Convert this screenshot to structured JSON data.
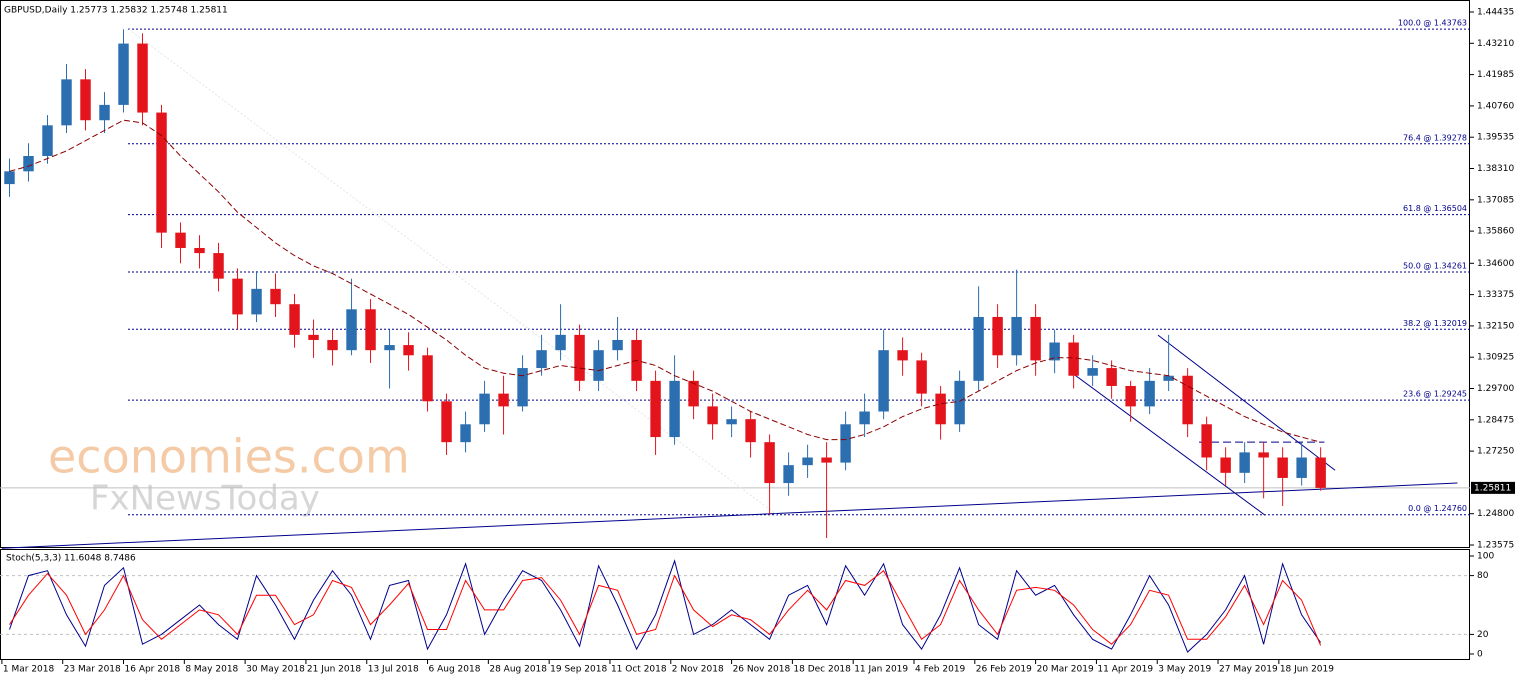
{
  "chart_data": {
    "type": "candlestick",
    "title": "GBPUSD,Daily  1.25773 1.25832 1.25748 1.25811",
    "x": [
      2,
      7,
      12,
      17,
      22,
      27,
      32,
      37,
      42,
      47,
      52,
      57,
      62,
      67,
      72,
      77,
      82,
      87,
      92,
      97,
      102,
      107,
      112,
      117,
      122,
      127,
      132,
      137,
      142,
      147,
      152,
      157,
      162,
      167,
      172,
      177,
      182,
      187,
      192,
      197,
      202,
      207,
      212,
      217,
      222,
      227,
      232,
      237,
      242,
      247,
      252,
      257,
      262,
      267,
      272,
      277,
      282,
      287,
      292,
      297,
      302,
      307,
      312,
      317,
      322,
      327,
      332,
      337,
      342,
      347
    ],
    "open": [
      1.377,
      1.382,
      1.388,
      1.4,
      1.418,
      1.402,
      1.408,
      1.432,
      1.405,
      1.358,
      1.352,
      1.35,
      1.34,
      1.326,
      1.336,
      1.33,
      1.318,
      1.316,
      1.312,
      1.328,
      1.312,
      1.314,
      1.31,
      1.292,
      1.276,
      1.283,
      1.295,
      1.29,
      1.305,
      1.312,
      1.318,
      1.3,
      1.312,
      1.316,
      1.3,
      1.278,
      1.3,
      1.29,
      1.283,
      1.285,
      1.276,
      1.26,
      1.267,
      1.27,
      1.268,
      1.283,
      1.288,
      1.312,
      1.308,
      1.295,
      1.283,
      1.3,
      1.325,
      1.31,
      1.325,
      1.308,
      1.315,
      1.302,
      1.305,
      1.298,
      1.29,
      1.3,
      1.302,
      1.283,
      1.27,
      1.264,
      1.272,
      1.27,
      1.262,
      1.27
    ],
    "high": [
      1.387,
      1.393,
      1.404,
      1.424,
      1.422,
      1.413,
      1.4376,
      1.436,
      1.408,
      1.362,
      1.357,
      1.354,
      1.344,
      1.343,
      1.342,
      1.334,
      1.324,
      1.32,
      1.34,
      1.332,
      1.32,
      1.319,
      1.313,
      1.295,
      1.288,
      1.3,
      1.302,
      1.31,
      1.318,
      1.33,
      1.322,
      1.316,
      1.325,
      1.32,
      1.304,
      1.31,
      1.304,
      1.295,
      1.29,
      1.288,
      1.279,
      1.272,
      1.275,
      1.276,
      1.288,
      1.295,
      1.32,
      1.317,
      1.311,
      1.298,
      1.304,
      1.337,
      1.33,
      1.3435,
      1.33,
      1.32,
      1.318,
      1.31,
      1.308,
      1.3,
      1.305,
      1.318,
      1.305,
      1.286,
      1.274,
      1.276,
      1.276,
      1.274,
      1.276,
      1.274
    ],
    "low": [
      1.372,
      1.378,
      1.385,
      1.397,
      1.398,
      1.397,
      1.405,
      1.4,
      1.352,
      1.346,
      1.344,
      1.335,
      1.32,
      1.323,
      1.325,
      1.313,
      1.309,
      1.306,
      1.31,
      1.307,
      1.297,
      1.304,
      1.288,
      1.271,
      1.272,
      1.28,
      1.279,
      1.288,
      1.302,
      1.308,
      1.296,
      1.296,
      1.308,
      1.296,
      1.271,
      1.275,
      1.285,
      1.277,
      1.278,
      1.27,
      1.2476,
      1.255,
      1.262,
      1.2385,
      1.265,
      1.278,
      1.285,
      1.302,
      1.29,
      1.277,
      1.28,
      1.296,
      1.305,
      1.306,
      1.302,
      1.303,
      1.297,
      1.298,
      1.293,
      1.284,
      1.287,
      1.296,
      1.278,
      1.265,
      1.259,
      1.26,
      1.254,
      1.251,
      1.259,
      1.257
    ],
    "close": [
      1.382,
      1.388,
      1.4,
      1.418,
      1.402,
      1.408,
      1.432,
      1.405,
      1.358,
      1.352,
      1.35,
      1.34,
      1.326,
      1.336,
      1.33,
      1.318,
      1.316,
      1.312,
      1.328,
      1.312,
      1.314,
      1.31,
      1.292,
      1.276,
      1.283,
      1.295,
      1.29,
      1.305,
      1.312,
      1.318,
      1.3,
      1.312,
      1.316,
      1.3,
      1.278,
      1.3,
      1.29,
      1.283,
      1.285,
      1.276,
      1.26,
      1.267,
      1.27,
      1.268,
      1.283,
      1.288,
      1.312,
      1.308,
      1.295,
      1.283,
      1.3,
      1.325,
      1.31,
      1.325,
      1.308,
      1.315,
      1.302,
      1.305,
      1.298,
      1.29,
      1.3,
      1.302,
      1.283,
      1.27,
      1.264,
      1.272,
      1.27,
      1.262,
      1.27,
      1.25811
    ],
    "up_color": "#2b6fb0",
    "down_color": "#e3141c",
    "ma": {
      "color": "#8b0000",
      "values": [
        1.382,
        1.384,
        1.387,
        1.39,
        1.394,
        1.398,
        1.402,
        1.401,
        1.396,
        1.388,
        1.381,
        1.374,
        1.366,
        1.36,
        1.354,
        1.349,
        1.345,
        1.342,
        1.338,
        1.334,
        1.33,
        1.326,
        1.321,
        1.316,
        1.31,
        1.305,
        1.303,
        1.302,
        1.304,
        1.306,
        1.305,
        1.304,
        1.306,
        1.308,
        1.306,
        1.302,
        1.299,
        1.296,
        1.292,
        1.288,
        1.285,
        1.282,
        1.279,
        1.277,
        1.277,
        1.279,
        1.282,
        1.286,
        1.289,
        1.291,
        1.292,
        1.296,
        1.3,
        1.304,
        1.307,
        1.309,
        1.309,
        1.308,
        1.306,
        1.304,
        1.303,
        1.302,
        1.298,
        1.294,
        1.29,
        1.286,
        1.283,
        1.28,
        1.278,
        1.276
      ]
    },
    "xlim": [
      -0.5,
      386.3
    ],
    "xticks": [
      {
        "value": 0,
        "label": "1 Mar 2018"
      },
      {
        "value": 16,
        "label": "23 Mar 2018"
      },
      {
        "value": 32,
        "label": "16 Apr 2018"
      },
      {
        "value": 48,
        "label": "8 May 2018"
      },
      {
        "value": 64,
        "label": "30 May 2018"
      },
      {
        "value": 80,
        "label": "21 Jun 2018"
      },
      {
        "value": 96,
        "label": "13 Jul 2018"
      },
      {
        "value": 112,
        "label": "6 Aug 2018"
      },
      {
        "value": 128,
        "label": "28 Aug 2018"
      },
      {
        "value": 144,
        "label": "19 Sep 2018"
      },
      {
        "value": 160,
        "label": "11 Oct 2018"
      },
      {
        "value": 176,
        "label": "2 Nov 2018"
      },
      {
        "value": 192,
        "label": "26 Nov 2018"
      },
      {
        "value": 208,
        "label": "18 Dec 2018"
      },
      {
        "value": 224,
        "label": "11 Jan 2019"
      },
      {
        "value": 240,
        "label": "4 Feb 2019"
      },
      {
        "value": 256,
        "label": "26 Feb 2019"
      },
      {
        "value": 272,
        "label": "20 Mar 2019"
      },
      {
        "value": 288,
        "label": "11 Apr 2019"
      },
      {
        "value": 304,
        "label": "3 May 2019"
      },
      {
        "value": 320,
        "label": "27 May 2019"
      },
      {
        "value": 336,
        "label": "18 Jun 2019"
      }
    ],
    "ylim": [
      1.23458,
      1.44905
    ],
    "yticks": [
      1.44435,
      {
        "value": 1.4321,
        "label": "1.43210"
      },
      1.41985,
      {
        "value": 1.4076,
        "label": "1.40760"
      },
      1.39535,
      {
        "value": 1.3831,
        "label": "1.38310"
      },
      1.37085,
      {
        "value": 1.3586,
        "label": "1.35860"
      },
      {
        "value": 1.346,
        "label": "1.34600"
      },
      1.33375,
      {
        "value": 1.3215,
        "label": "1.32150"
      },
      1.30925,
      {
        "value": 1.297,
        "label": "1.29700"
      },
      1.28475,
      {
        "value": 1.2725,
        "label": "1.27250"
      },
      {
        "value": 1.248,
        "label": "1.24800"
      },
      1.23575
    ],
    "fib_levels": [
      {
        "value": 1.43763,
        "label": "100.0 @ 1.43763"
      },
      {
        "value": 1.39278,
        "label": "76.4 @ 1.39278"
      },
      {
        "value": 1.36504,
        "label": "61.8 @ 1.36504"
      },
      {
        "value": 1.34261,
        "label": "50.0 @ 1.34261"
      },
      {
        "value": 1.32019,
        "label": "38.2 @ 1.32019"
      },
      {
        "value": 1.29245,
        "label": "23.6 @ 1.29245"
      },
      {
        "value": 1.2476,
        "label": "0.0 @ 1.24760"
      }
    ],
    "fib_color": "#00008b",
    "lines": [
      {
        "x": [
          0,
          383
        ],
        "y": [
          1.2345,
          1.26
        ],
        "color": "#00008b",
        "style": "solid"
      },
      {
        "x": [
          304.2,
          350.8
        ],
        "y": [
          1.3179,
          1.265
        ],
        "color": "#00008b",
        "style": "solid"
      },
      {
        "x": [
          282.4,
          332.4
        ],
        "y": [
          1.3022,
          1.2474
        ],
        "color": "#00008b",
        "style": "solid"
      },
      {
        "x": [
          315,
          348
        ],
        "y": [
          1.276,
          1.276
        ],
        "color": "#00008b",
        "style": "dashed"
      },
      {
        "x": [
          33.4,
          203.9
        ],
        "y": [
          1.4376,
          1.2476
        ],
        "color": "#e4e4e4",
        "style": "dotted"
      }
    ],
    "last_price": 1.25811,
    "watermarks": [
      "economies.com",
      "FxNewsToday"
    ],
    "stochastic": {
      "title": "Stoch(5,3,3) 11.6048 8.7486",
      "ylim": [
        0,
        100
      ],
      "yticks": [
        100,
        80,
        20,
        0
      ],
      "grid": [
        80,
        20
      ],
      "series": [
        {
          "color": "#00008b",
          "values": [
            25,
            80,
            85,
            40,
            8,
            70,
            88,
            10,
            20,
            35,
            50,
            30,
            15,
            80,
            50,
            15,
            55,
            85,
            60,
            15,
            70,
            75,
            5,
            40,
            92,
            20,
            55,
            85,
            75,
            45,
            8,
            90,
            50,
            5,
            40,
            95,
            20,
            30,
            45,
            30,
            15,
            60,
            70,
            30,
            90,
            60,
            92,
            30,
            5,
            40,
            88,
            30,
            15,
            85,
            60,
            70,
            40,
            15,
            5,
            40,
            80,
            50,
            2,
            20,
            45,
            80,
            10,
            92,
            40,
            11.6048
          ]
        },
        {
          "color": "#ff0000",
          "values": [
            30,
            60,
            82,
            60,
            20,
            45,
            80,
            35,
            15,
            30,
            45,
            40,
            20,
            60,
            60,
            30,
            40,
            75,
            68,
            30,
            50,
            72,
            25,
            25,
            75,
            45,
            45,
            75,
            78,
            55,
            20,
            70,
            65,
            20,
            25,
            80,
            45,
            28,
            40,
            35,
            20,
            45,
            65,
            45,
            75,
            70,
            85,
            50,
            15,
            30,
            75,
            45,
            20,
            65,
            68,
            65,
            50,
            25,
            10,
            30,
            65,
            60,
            15,
            15,
            38,
            70,
            30,
            75,
            55,
            8.7486
          ]
        }
      ]
    }
  }
}
